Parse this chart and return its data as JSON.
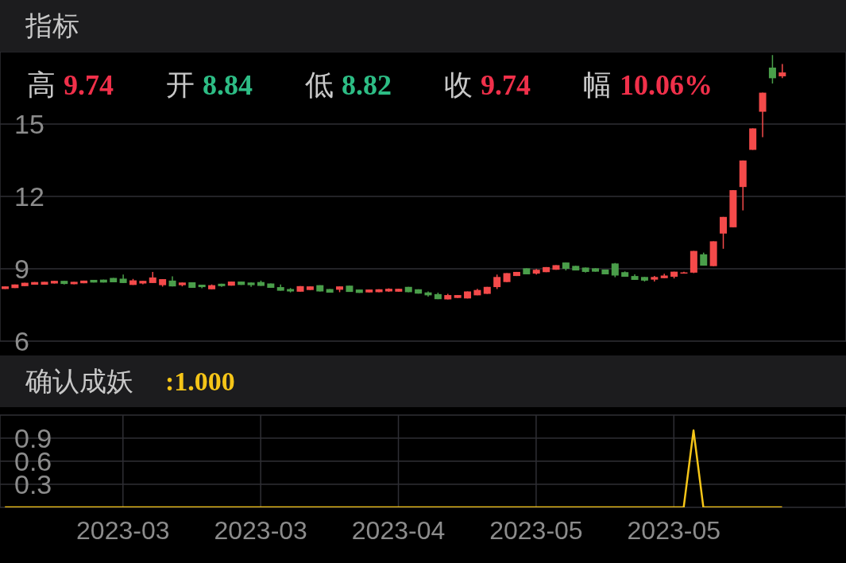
{
  "chart_data": [
    {
      "type": "candlestick",
      "title": "指标",
      "annotations": [
        "高 9.74",
        "开 8.84",
        "低 8.82",
        "收 9.74",
        "幅 10.06%"
      ],
      "categories": [
        null,
        null,
        null,
        null,
        null,
        null,
        null,
        null,
        null,
        null,
        null,
        null,
        "2023-03",
        null,
        null,
        null,
        null,
        null,
        null,
        null,
        null,
        null,
        null,
        null,
        null,
        null,
        "2023-03",
        null,
        null,
        null,
        null,
        null,
        null,
        null,
        null,
        null,
        null,
        null,
        null,
        null,
        "2023-04",
        null,
        null,
        null,
        null,
        null,
        null,
        null,
        null,
        null,
        null,
        null,
        null,
        null,
        "2023-05",
        null,
        null,
        null,
        null,
        null,
        null,
        null,
        null,
        null,
        null,
        null,
        null,
        null,
        "2023-05",
        null,
        null,
        null,
        null,
        null,
        null,
        null,
        null,
        null,
        null,
        null
      ],
      "ohlc": [
        [
          8.16,
          8.27,
          8.16,
          8.27
        ],
        [
          8.2,
          8.35,
          8.2,
          8.35
        ],
        [
          8.28,
          8.42,
          8.28,
          8.42
        ],
        [
          8.34,
          8.45,
          8.34,
          8.45
        ],
        [
          8.34,
          8.46,
          8.34,
          8.46
        ],
        [
          8.39,
          8.5,
          8.39,
          8.5
        ],
        [
          8.5,
          8.5,
          8.35,
          8.37
        ],
        [
          8.36,
          8.46,
          8.36,
          8.46
        ],
        [
          8.4,
          8.51,
          8.4,
          8.51
        ],
        [
          8.54,
          8.54,
          8.43,
          8.43
        ],
        [
          8.55,
          8.55,
          8.43,
          8.43
        ],
        [
          8.62,
          8.62,
          8.44,
          8.44
        ],
        [
          8.59,
          8.76,
          8.41,
          8.41
        ],
        [
          8.33,
          8.58,
          8.33,
          8.52
        ],
        [
          8.39,
          8.5,
          8.36,
          8.5
        ],
        [
          8.41,
          8.87,
          8.41,
          8.64
        ],
        [
          8.32,
          8.57,
          8.26,
          8.57
        ],
        [
          8.51,
          8.69,
          8.27,
          8.27
        ],
        [
          8.32,
          8.43,
          8.27,
          8.43
        ],
        [
          8.44,
          8.44,
          8.21,
          8.21
        ],
        [
          8.34,
          8.34,
          8.19,
          8.24
        ],
        [
          8.15,
          8.35,
          8.15,
          8.32
        ],
        [
          8.38,
          8.38,
          8.25,
          8.28
        ],
        [
          8.3,
          8.47,
          8.3,
          8.47
        ],
        [
          8.47,
          8.47,
          8.33,
          8.33
        ],
        [
          8.43,
          8.43,
          8.25,
          8.32
        ],
        [
          8.45,
          8.51,
          8.29,
          8.29
        ],
        [
          8.39,
          8.39,
          8.21,
          8.21
        ],
        [
          8.24,
          8.35,
          8.09,
          8.09
        ],
        [
          8.16,
          8.2,
          8.02,
          8.06
        ],
        [
          8.05,
          8.28,
          8.05,
          8.28
        ],
        [
          8.12,
          8.27,
          8.12,
          8.27
        ],
        [
          8.32,
          8.32,
          8.06,
          8.06
        ],
        [
          8.16,
          8.16,
          8.01,
          8.01
        ],
        [
          8.13,
          8.27,
          8.03,
          8.27
        ],
        [
          8.3,
          8.3,
          8.04,
          8.04
        ],
        [
          8.14,
          8.14,
          8.0,
          8.0
        ],
        [
          8.02,
          8.14,
          8.02,
          8.14
        ],
        [
          8.03,
          8.15,
          8.03,
          8.15
        ],
        [
          8.06,
          8.19,
          8.04,
          8.17
        ],
        [
          8.05,
          8.17,
          8.05,
          8.17
        ],
        [
          8.25,
          8.25,
          8.03,
          8.03
        ],
        [
          8.15,
          8.15,
          7.97,
          7.97
        ],
        [
          8.02,
          8.06,
          7.85,
          7.9
        ],
        [
          7.95,
          8.01,
          7.74,
          7.74
        ],
        [
          7.73,
          7.96,
          7.73,
          7.91
        ],
        [
          7.79,
          7.91,
          7.79,
          7.91
        ],
        [
          7.77,
          8.06,
          7.77,
          8.06
        ],
        [
          7.9,
          8.17,
          7.9,
          8.12
        ],
        [
          7.96,
          8.25,
          7.96,
          8.25
        ],
        [
          8.24,
          8.76,
          8.16,
          8.66
        ],
        [
          8.45,
          8.82,
          8.45,
          8.82
        ],
        [
          8.7,
          8.87,
          8.7,
          8.87
        ],
        [
          9.02,
          9.02,
          8.77,
          8.77
        ],
        [
          8.8,
          8.99,
          8.76,
          8.96
        ],
        [
          8.86,
          9.07,
          8.86,
          9.07
        ],
        [
          8.96,
          9.15,
          8.96,
          9.15
        ],
        [
          9.26,
          9.26,
          8.93,
          9.0
        ],
        [
          9.12,
          9.12,
          8.93,
          8.93
        ],
        [
          9.05,
          9.05,
          8.84,
          8.87
        ],
        [
          9.02,
          9.02,
          8.88,
          8.88
        ],
        [
          8.97,
          8.97,
          8.77,
          8.77
        ],
        [
          9.22,
          9.24,
          8.65,
          8.72
        ],
        [
          8.86,
          8.89,
          8.67,
          8.67
        ],
        [
          8.7,
          8.77,
          8.54,
          8.54
        ],
        [
          8.66,
          8.66,
          8.47,
          8.51
        ],
        [
          8.55,
          8.7,
          8.47,
          8.66
        ],
        [
          8.61,
          8.79,
          8.61,
          8.72
        ],
        [
          8.67,
          8.88,
          8.6,
          8.88
        ],
        [
          8.8,
          8.88,
          8.8,
          8.85
        ],
        [
          8.84,
          9.74,
          8.82,
          9.74
        ],
        [
          9.6,
          9.67,
          9.13,
          9.13
        ],
        [
          9.11,
          10.14,
          9.11,
          10.14
        ],
        [
          10.46,
          11.15,
          9.83,
          11.15
        ],
        [
          10.72,
          12.26,
          10.72,
          12.26
        ],
        [
          12.39,
          13.49,
          11.42,
          13.49
        ],
        [
          13.93,
          14.82,
          13.93,
          14.82
        ],
        [
          15.51,
          16.3,
          14.46,
          16.3
        ],
        [
          17.34,
          17.86,
          16.68,
          16.9
        ],
        [
          16.98,
          17.49,
          16.9,
          17.14
        ]
      ],
      "ylim": [
        6,
        18
      ],
      "yticks": [
        6,
        9,
        12,
        15
      ],
      "grid": true,
      "tick_labels": "y"
    },
    {
      "type": "line",
      "title": "确认成妖",
      "annotations": [
        ":1.000"
      ],
      "categories": [
        null,
        null,
        null,
        null,
        null,
        null,
        null,
        null,
        null,
        null,
        null,
        null,
        "2023-03",
        null,
        null,
        null,
        null,
        null,
        null,
        null,
        null,
        null,
        null,
        null,
        null,
        null,
        "2023-03",
        null,
        null,
        null,
        null,
        null,
        null,
        null,
        null,
        null,
        null,
        null,
        null,
        null,
        "2023-04",
        null,
        null,
        null,
        null,
        null,
        null,
        null,
        null,
        null,
        null,
        null,
        null,
        null,
        "2023-05",
        null,
        null,
        null,
        null,
        null,
        null,
        null,
        null,
        null,
        null,
        null,
        null,
        null,
        "2023-05",
        null,
        null,
        null,
        null,
        null,
        null,
        null,
        null,
        null,
        null,
        null
      ],
      "series": [
        {
          "color": "#f5c518",
          "values": [
            0,
            0,
            0,
            0,
            0,
            0,
            0,
            0,
            0,
            0,
            0,
            0,
            0,
            0,
            0,
            0,
            0,
            0,
            0,
            0,
            0,
            0,
            0,
            0,
            0,
            0,
            0,
            0,
            0,
            0,
            0,
            0,
            0,
            0,
            0,
            0,
            0,
            0,
            0,
            0,
            0,
            0,
            0,
            0,
            0,
            0,
            0,
            0,
            0,
            0,
            0,
            0,
            0,
            0,
            0,
            0,
            0,
            0,
            0,
            0,
            0,
            0,
            0,
            0,
            0,
            0,
            0,
            0,
            0,
            0,
            1,
            0,
            0,
            0,
            0,
            0,
            0,
            0,
            0,
            0
          ]
        }
      ],
      "ylim": [
        0,
        1.2
      ],
      "yticks": [
        {
          "value": 0,
          "label": null
        },
        0.3,
        0.6,
        0.9,
        {
          "value": 1.2,
          "label": null
        }
      ],
      "grid": true,
      "marker": "none"
    }
  ]
}
